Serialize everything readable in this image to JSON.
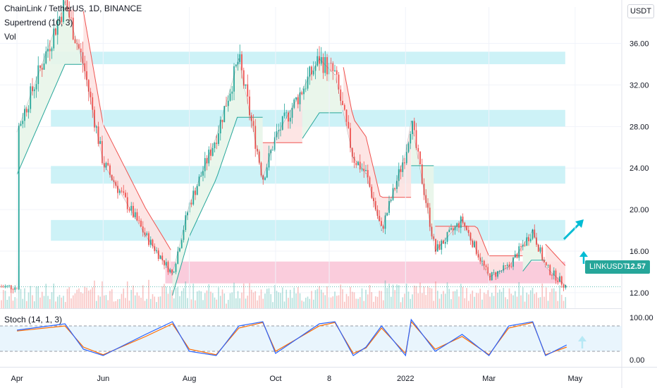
{
  "legend": {
    "symbol_line": "ChainLink / TetherUS, 1D, BINANCE",
    "indicator": "Supertrend (10, 3)",
    "volume": "Vol",
    "oscillator": "Stoch (14, 1, 3)"
  },
  "currency_badge": "USDT",
  "price_tag": {
    "symbol": "LINKUSDT",
    "price": "12.57"
  },
  "colors": {
    "up": "#26a69a",
    "down": "#ef5350",
    "zone": "#b2ebf2",
    "support": "#f8bbd0",
    "super_up_fill": "#e8f5e9",
    "super_down_fill": "#fde2e1",
    "arrow": "#00bcd4",
    "stoch_k": "#2962ff",
    "stoch_d": "#ff6d00",
    "stoch_band": "#e3f2fd"
  },
  "chart_data": {
    "type": "line",
    "title": "ChainLink / TetherUS, 1D, BINANCE",
    "x_ticks": [
      "Apr",
      "Jun",
      "Aug",
      "Oct",
      "8",
      "2022",
      "Mar",
      "May"
    ],
    "y_ticks": [
      "36.00",
      "32.00",
      "28.00",
      "24.00",
      "20.00",
      "16.00",
      "12.00"
    ],
    "ylim": [
      10.5,
      39.5
    ],
    "last_price": 12.57,
    "x": [
      "2021-04",
      "2021-05-05",
      "2021-05-18",
      "2021-06",
      "2021-07",
      "2021-07-20",
      "2021-08",
      "2021-08-20",
      "2021-09-05",
      "2021-09-22",
      "2021-10",
      "2021-11-01",
      "2021-11-12",
      "2021-11-25",
      "2021-12-04",
      "2021-12-15",
      "2022-01",
      "2022-01-05",
      "2022-01-22",
      "2022-02-10",
      "2022-03",
      "2022-03-15",
      "2022-04-01",
      "2022-04-10",
      "2022-04-25"
    ],
    "series": [
      {
        "name": "LINKUSDT",
        "values": [
          27.5,
          40.0,
          34.0,
          24.5,
          17.5,
          13.8,
          20.5,
          27.0,
          34.5,
          23.0,
          27.0,
          34.5,
          33.0,
          25.0,
          23.5,
          18.0,
          25.5,
          28.5,
          16.0,
          19.0,
          13.5,
          14.5,
          18.0,
          14.5,
          12.57
        ]
      }
    ],
    "stoch": {
      "name": "Stoch (14, 1, 3)",
      "ylim": [
        0,
        100
      ],
      "y_ticks": [
        "100.00",
        "0.00"
      ],
      "bands": [
        80,
        20
      ],
      "k_values": [
        70,
        85,
        25,
        10,
        60,
        90,
        20,
        10,
        80,
        90,
        15,
        85,
        90,
        10,
        30,
        80,
        10,
        95,
        20,
        60,
        10,
        80,
        90,
        10,
        35
      ],
      "d_values": [
        68,
        80,
        30,
        12,
        55,
        85,
        25,
        12,
        75,
        88,
        20,
        80,
        88,
        15,
        28,
        75,
        15,
        90,
        25,
        55,
        12,
        75,
        88,
        12,
        30
      ]
    },
    "supertrend": [
      {
        "from": "2021-04",
        "to": "2021-05-18",
        "direction": "up"
      },
      {
        "from": "2021-05-18",
        "to": "2021-07-20",
        "direction": "down"
      },
      {
        "from": "2021-07-20",
        "to": "2021-09-22",
        "direction": "up"
      },
      {
        "from": "2021-09-22",
        "to": "2021-10-20",
        "direction": "down"
      },
      {
        "from": "2021-10-20",
        "to": "2021-11-18",
        "direction": "up"
      },
      {
        "from": "2021-11-18",
        "to": "2022-01-05",
        "direction": "down"
      },
      {
        "from": "2022-01-05",
        "to": "2022-01-22",
        "direction": "up"
      },
      {
        "from": "2022-01-22",
        "to": "2022-03-25",
        "direction": "down"
      },
      {
        "from": "2022-03-25",
        "to": "2022-04-10",
        "direction": "up"
      },
      {
        "from": "2022-04-10",
        "to": "2022-04-25",
        "direction": "down"
      }
    ],
    "zones": [
      {
        "low": 34.0,
        "high": 35.2
      },
      {
        "low": 28.0,
        "high": 29.6
      },
      {
        "low": 22.5,
        "high": 24.2
      },
      {
        "low": 17.0,
        "high": 19.0
      },
      {
        "low": 12.9,
        "high": 15.0,
        "kind": "support"
      }
    ],
    "annotations": [
      "up-arrow",
      "up-arrow",
      "up-arrow"
    ]
  }
}
